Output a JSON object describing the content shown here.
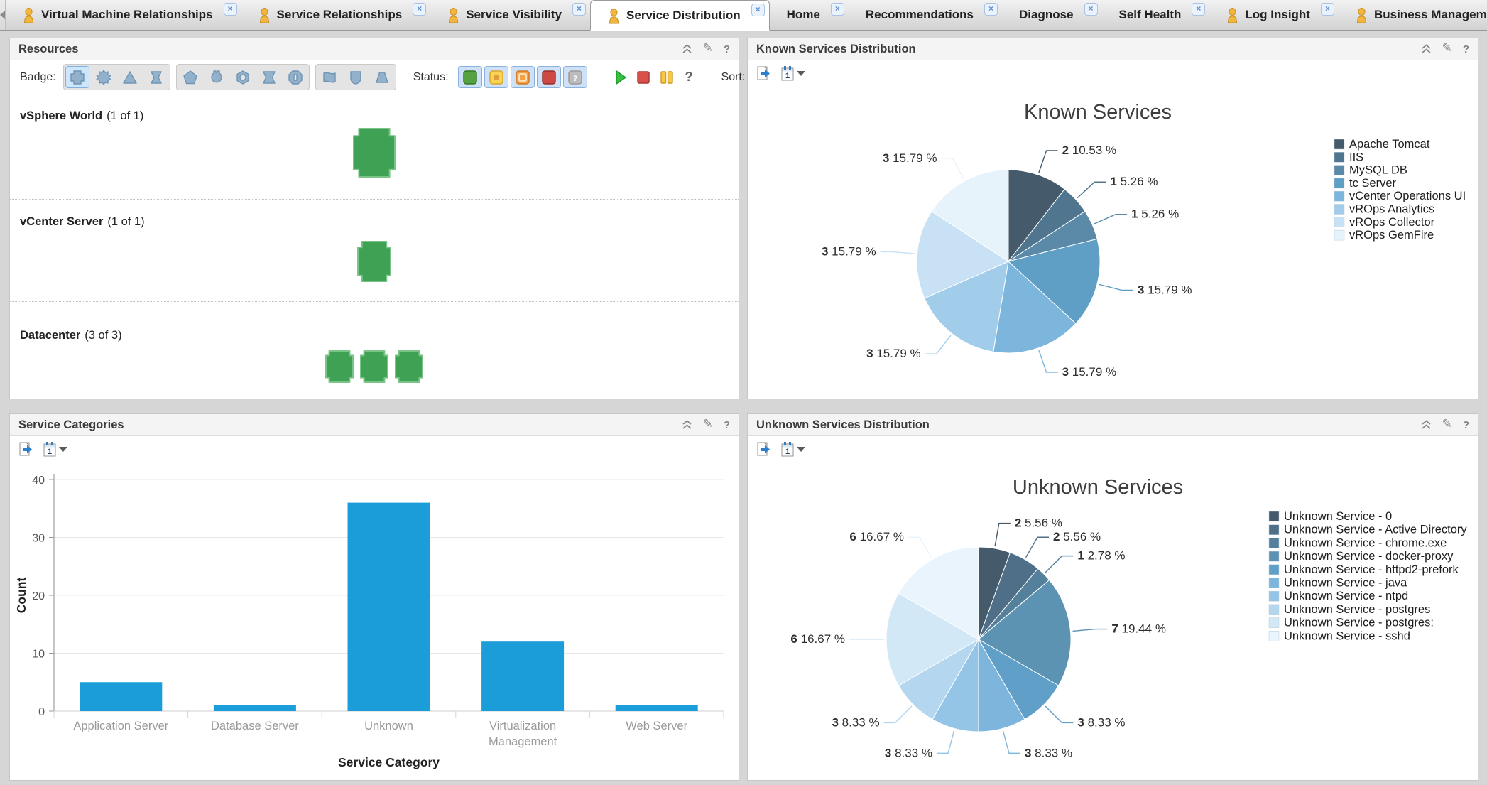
{
  "tab_bar": {
    "tabs": [
      {
        "label": "Virtual Machine Relationships",
        "user_icon": true,
        "closable": true,
        "active": false
      },
      {
        "label": "Service Relationships",
        "user_icon": true,
        "closable": true,
        "active": false
      },
      {
        "label": "Service Visibility",
        "user_icon": true,
        "closable": true,
        "active": false
      },
      {
        "label": "Service Distribution",
        "user_icon": true,
        "closable": true,
        "active": true
      },
      {
        "label": "Home",
        "user_icon": false,
        "closable": true,
        "active": false
      },
      {
        "label": "Recommendations",
        "user_icon": false,
        "closable": true,
        "active": false
      },
      {
        "label": "Diagnose",
        "user_icon": false,
        "closable": true,
        "active": false
      },
      {
        "label": "Self Health",
        "user_icon": false,
        "closable": true,
        "active": false
      },
      {
        "label": "Log Insight",
        "user_icon": true,
        "closable": true,
        "active": false
      },
      {
        "label": "Business Management",
        "user_icon": true,
        "closable": false,
        "active": false
      }
    ],
    "icons": {
      "scroll_left": "left-arrow",
      "scroll_right": "right-arrow",
      "tab_user": "person",
      "tab_close": "x"
    }
  },
  "panel_header_icons": {
    "collapse": "double-chevron-up",
    "edit": "pencil",
    "help": "?"
  },
  "chart_toolbar": {
    "export_icon": "export-page-arrow",
    "interval_icon": "calendar",
    "interval_label": "1"
  },
  "panels": {
    "resources": {
      "title": "Resources",
      "toolbar": {
        "badge_label": "Badge:",
        "status_label": "Status:",
        "help_label": "?",
        "sort_label": "Sort:",
        "more_label": "»",
        "status_colors": {
          "green": "#56a243",
          "yellow": "#f9d453",
          "orange": "#f6a045",
          "red": "#cc4944",
          "gray": "#bcbcbc"
        },
        "badge_shape_count": 12
      },
      "rows": [
        {
          "name": "vSphere World",
          "count_text": "(1 of 1)",
          "badges": 1
        },
        {
          "name": "vCenter Server",
          "count_text": "(1 of 1)",
          "badges": 1
        },
        {
          "name": "Datacenter",
          "count_text": "(3 of 3)",
          "badges": 3
        }
      ],
      "badge_color": "#3EA153"
    },
    "known": {
      "title": "Known Services Distribution"
    },
    "categories": {
      "title": "Service Categories"
    },
    "unknown": {
      "title": "Unknown Services Distribution"
    }
  },
  "chart_data": [
    {
      "id": "known_services",
      "type": "pie",
      "title": "Known Services",
      "legend_position": "right",
      "labels": [
        "Apache Tomcat",
        "IIS",
        "MySQL DB",
        "tc Server",
        "vCenter Operations UI",
        "vROps Analytics",
        "vROps Collector",
        "vROps GemFire"
      ],
      "values": [
        2,
        1,
        1,
        3,
        3,
        3,
        3,
        3
      ],
      "pct_labels": [
        "10.53 %",
        "5.26 %",
        "5.26 %",
        "15.79 %",
        "15.79 %",
        "15.79 %",
        "15.79 %",
        "15.79 %"
      ],
      "colors": [
        "#455a6b",
        "#50758f",
        "#5a8aa8",
        "#5f9fc6",
        "#7db6dd",
        "#a2cdea",
        "#c8e1f4",
        "#e7f3fb"
      ]
    },
    {
      "id": "service_categories",
      "type": "bar",
      "title": "",
      "categories": [
        "Application Server",
        "Database Server",
        "Unknown",
        "Virtualization Management",
        "Web Server"
      ],
      "values": [
        5,
        1,
        36,
        12,
        1
      ],
      "xlabel": "Service Category",
      "ylabel": "Count",
      "ylim": [
        0,
        40
      ],
      "yticks": [
        0,
        10,
        20,
        30,
        40
      ],
      "grid": true,
      "bar_color": "#1B9DD9"
    },
    {
      "id": "unknown_services",
      "type": "pie",
      "title": "Unknown Services",
      "legend_position": "right",
      "labels": [
        "Unknown Service - 0",
        "Unknown Service - Active Directory",
        "Unknown Service - chrome.exe",
        "Unknown Service - docker-proxy",
        "Unknown Service - httpd2-prefork",
        "Unknown Service - java",
        "Unknown Service - ntpd",
        "Unknown Service - postgres",
        "Unknown Service - postgres:",
        "Unknown Service - sshd"
      ],
      "values": [
        2,
        2,
        1,
        7,
        3,
        3,
        3,
        3,
        6,
        6
      ],
      "pct_labels": [
        "5.56 %",
        "5.56 %",
        "2.78 %",
        "19.44 %",
        "8.33 %",
        "8.33 %",
        "8.33 %",
        "8.33 %",
        "16.67 %",
        "16.67 %"
      ],
      "colors": [
        "#455a6b",
        "#4e6f87",
        "#55809c",
        "#5c93b3",
        "#609fc7",
        "#7db5dc",
        "#94c4e6",
        "#b4d7ef",
        "#d3e8f7",
        "#eaf4fc"
      ]
    }
  ]
}
